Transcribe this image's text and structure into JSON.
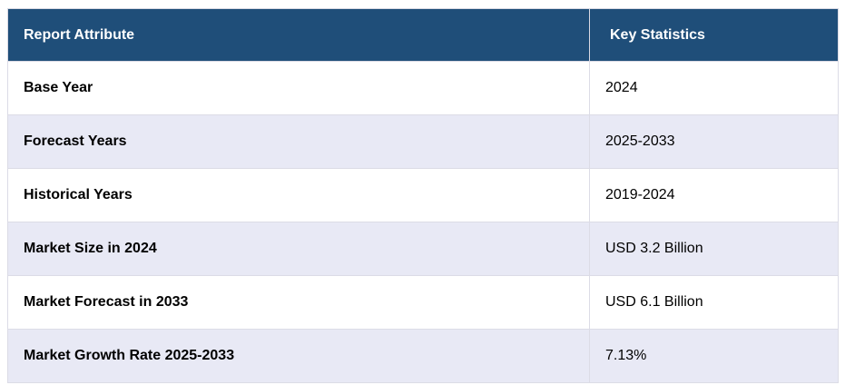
{
  "header": {
    "col1": "Report Attribute",
    "col2": "Key Statistics"
  },
  "rows": [
    {
      "attribute": "Base Year",
      "value": "2024"
    },
    {
      "attribute": "Forecast Years",
      "value": "2025-2033"
    },
    {
      "attribute": "Historical Years",
      "value": "2019-2024"
    },
    {
      "attribute": "Market Size in 2024",
      "value": "USD 3.2 Billion"
    },
    {
      "attribute": "Market Forecast in 2033",
      "value": "USD 6.1 Billion"
    },
    {
      "attribute": "Market Growth Rate 2025-2033",
      "value": "7.13%"
    }
  ],
  "colors": {
    "header_bg": "#1f4e79",
    "header_text": "#ffffff",
    "row_alt_bg": "#e8e9f5"
  }
}
